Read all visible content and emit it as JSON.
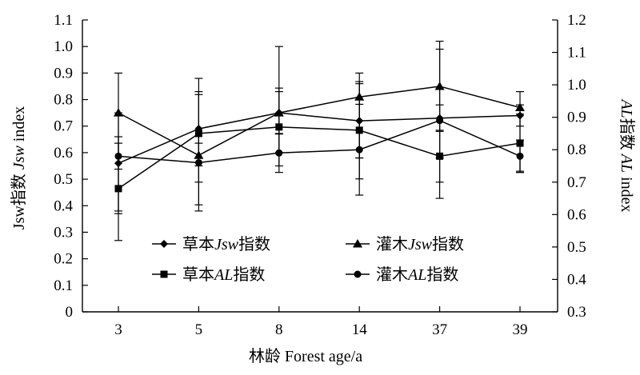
{
  "chart_data": {
    "type": "line",
    "categories": [
      "3",
      "5",
      "8",
      "14",
      "37",
      "39"
    ],
    "xlabel": "林龄 Forest age/a",
    "ylabel_left": "Jsw指数 Jsw index",
    "ylabel_right": "AL指数 AL index",
    "ylim_left": [
      0,
      1.1
    ],
    "ylim_right": [
      0.3,
      1.2
    ],
    "yticks_left": [
      "0",
      "0.1",
      "0.2",
      "0.3",
      "0.4",
      "0.5",
      "0.6",
      "0.7",
      "0.8",
      "0.9",
      "1.0",
      "1.1"
    ],
    "yticks_right": [
      "0.3",
      "0.4",
      "0.5",
      "0.6",
      "0.7",
      "0.8",
      "0.9",
      "1.0",
      "1.1",
      "1.2"
    ],
    "series": [
      {
        "name": "草本Jsw指数",
        "axis": "left",
        "marker": "diamond",
        "values": [
          0.56,
          0.69,
          0.75,
          0.72,
          0.73,
          0.74
        ],
        "err_low": [
          0.37,
          0.55,
          0.67,
          0.58,
          0.68,
          0.7
        ],
        "err_high": [
          0.75,
          0.83,
          0.83,
          0.86,
          0.78,
          0.78
        ]
      },
      {
        "name": "灌木Jsw指数",
        "axis": "left",
        "marker": "triangle",
        "values": [
          0.75,
          0.59,
          0.75,
          0.81,
          0.85,
          0.77
        ],
        "err_low": [
          0.38,
          0.38,
          0.6,
          0.58,
          0.58,
          0.53
        ],
        "err_high": [
          0.9,
          0.88,
          1.0,
          0.9,
          1.02,
          0.83
        ]
      },
      {
        "name": "草本AL指数",
        "axis": "right",
        "marker": "square",
        "values": [
          0.68,
          0.85,
          0.87,
          0.86,
          0.78,
          0.82
        ],
        "err_low": [
          0.52,
          0.63,
          0.75,
          0.71,
          0.7,
          0.73
        ],
        "err_high": [
          0.84,
          0.97,
          0.99,
          1.01,
          0.86,
          0.91
        ]
      },
      {
        "name": "灌木AL指数",
        "axis": "right",
        "marker": "circle",
        "values": [
          0.78,
          0.76,
          0.79,
          0.8,
          0.89,
          0.78
        ],
        "err_low": [
          0.74,
          0.7,
          0.73,
          0.66,
          0.65,
          0.73
        ],
        "err_high": [
          0.82,
          0.82,
          0.85,
          0.94,
          1.11,
          0.83
        ]
      }
    ],
    "legend": [
      {
        "label_cn1": "草本",
        "label_it": "Jsw",
        "label_cn2": "指数",
        "marker": "diamond"
      },
      {
        "label_cn1": "灌木",
        "label_it": "Jsw",
        "label_cn2": "指数",
        "marker": "triangle"
      },
      {
        "label_cn1": "草本",
        "label_it": "AL",
        "label_cn2": "指数",
        "marker": "square"
      },
      {
        "label_cn1": "灌木",
        "label_it": "AL",
        "label_cn2": "指数",
        "marker": "circle"
      }
    ],
    "axis_titles": {
      "x_cn": "林龄",
      "x_en": "Forest age/a",
      "yl_pre": "Jsw指数 ",
      "yl_it": "Jsw",
      "yl_post": " index",
      "yr_it": "AL",
      "yr_mid": "指数 ",
      "yr_it2": "AL",
      "yr_post": " index"
    },
    "grid": false,
    "legend_position": "bottom-center"
  }
}
